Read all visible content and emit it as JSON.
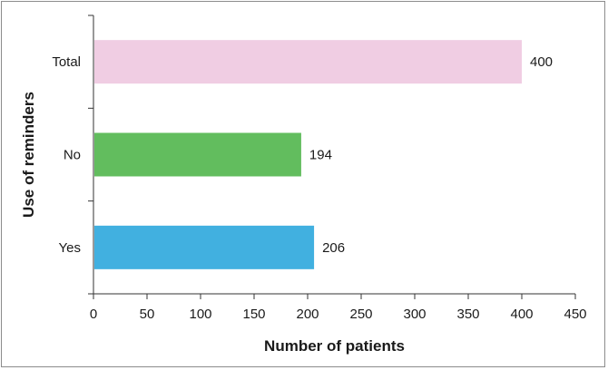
{
  "chart_data": {
    "type": "bar",
    "orientation": "horizontal",
    "title": "",
    "xlabel": "Number of patients",
    "ylabel": "Use of reminders",
    "categories": [
      "Total",
      "No",
      "Yes"
    ],
    "values": [
      400,
      194,
      206
    ],
    "data_labels": [
      "400",
      "194",
      "206"
    ],
    "colors": [
      "#f0cde3",
      "#62bd5e",
      "#41b0e0"
    ],
    "xlim": [
      0,
      450
    ],
    "xticks": [
      0,
      50,
      100,
      150,
      200,
      250,
      300,
      350,
      400,
      450
    ],
    "grid": false,
    "legend": "none"
  }
}
